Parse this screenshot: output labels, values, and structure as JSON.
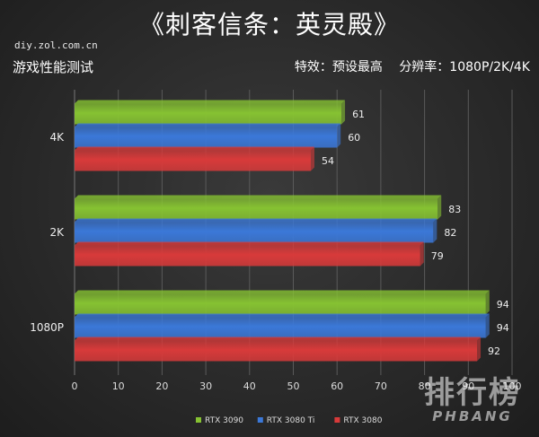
{
  "header": {
    "title": "《刺客信条：英灵殿》",
    "source": "diy.zol.com.cn",
    "subtitle": "游戏性能测试",
    "setting_effects": "特效：预设最高",
    "setting_resolution": "分辨率：1080P/2K/4K"
  },
  "watermark": {
    "main": "排行榜",
    "sub": "PHBANG"
  },
  "colors": {
    "RTX 3090": "#86c232",
    "RTX 3080 Ti": "#3b78d8",
    "RTX 3080": "#d83a3a"
  },
  "chart_data": {
    "type": "bar",
    "orientation": "horizontal",
    "categories": [
      "4K",
      "2K",
      "1080P"
    ],
    "series": [
      {
        "name": "RTX 3090",
        "values": [
          61,
          83,
          94
        ]
      },
      {
        "name": "RTX 3080 Ti",
        "values": [
          60,
          82,
          94
        ]
      },
      {
        "name": "RTX 3080",
        "values": [
          54,
          79,
          92
        ]
      }
    ],
    "xlim": [
      0,
      100
    ],
    "xticks": [
      0,
      10,
      20,
      30,
      40,
      50,
      60,
      70,
      80,
      90,
      100
    ],
    "grid": true,
    "legend_position": "bottom"
  }
}
